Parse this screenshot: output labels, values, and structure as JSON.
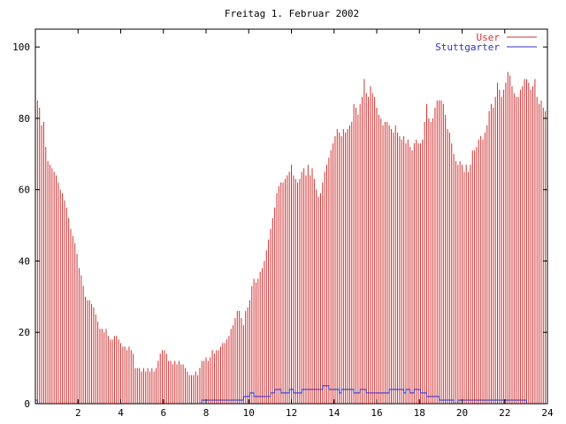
{
  "chart_data": {
    "type": "bar",
    "title": "Freitag 1. Februar 2002",
    "xlabel": "",
    "ylabel": "",
    "xlim": [
      0,
      24
    ],
    "ylim": [
      0,
      105
    ],
    "x_ticks": [
      2,
      4,
      6,
      8,
      10,
      12,
      14,
      16,
      18,
      20,
      22,
      24
    ],
    "y_ticks": [
      0,
      20,
      40,
      60,
      80,
      100
    ],
    "grid": false,
    "legend_position": "top-right",
    "series": [
      {
        "name": "User",
        "style": "impulses",
        "color": "#d03030",
        "values": [
          83,
          85,
          83,
          78,
          79,
          72,
          68,
          67,
          66,
          65,
          64,
          62,
          60,
          59,
          57,
          55,
          52,
          49,
          47,
          45,
          42,
          38,
          36,
          33,
          30,
          29,
          29,
          28,
          27,
          25,
          23,
          21,
          21,
          20,
          21,
          19,
          18,
          18,
          19,
          19,
          18,
          17,
          16,
          16,
          15,
          16,
          15,
          14,
          10,
          10,
          10,
          9,
          10,
          9,
          10,
          9,
          10,
          9,
          10,
          12,
          14,
          15,
          15,
          14,
          12,
          12,
          11,
          12,
          11,
          12,
          11,
          11,
          10,
          9,
          8,
          8,
          8,
          9,
          8,
          10,
          12,
          12,
          13,
          12,
          13,
          15,
          14,
          15,
          15,
          16,
          17,
          17,
          18,
          19,
          21,
          22,
          24,
          26,
          26,
          24,
          22,
          26,
          27,
          29,
          33,
          35,
          34,
          35,
          37,
          38,
          40,
          43,
          46,
          49,
          52,
          55,
          59,
          61,
          62,
          62,
          63,
          64,
          65,
          67,
          64,
          63,
          62,
          63,
          65,
          66,
          64,
          67,
          64,
          66,
          63,
          60,
          58,
          59,
          62,
          65,
          67,
          69,
          71,
          73,
          75,
          77,
          76,
          75,
          77,
          76,
          77,
          78,
          79,
          84,
          83,
          81,
          84,
          86,
          91,
          87,
          86,
          89,
          87,
          86,
          83,
          81,
          80,
          78,
          79,
          79,
          78,
          77,
          76,
          78,
          76,
          75,
          74,
          75,
          73,
          74,
          72,
          71,
          73,
          74,
          73,
          73,
          74,
          79,
          84,
          80,
          79,
          80,
          83,
          85,
          85,
          85,
          84,
          81,
          77,
          76,
          73,
          70,
          68,
          67,
          68,
          67,
          65,
          67,
          65,
          67,
          71,
          71,
          72,
          74,
          75,
          74,
          76,
          78,
          82,
          84,
          83,
          86,
          90,
          88,
          86,
          88,
          90,
          93,
          92,
          89,
          87,
          86,
          86,
          88,
          89,
          91,
          91,
          90,
          88,
          89,
          91,
          86,
          84,
          85,
          83,
          82,
          80
        ]
      },
      {
        "name": "Stuttgarter",
        "style": "steps",
        "color": "#3030c0",
        "values": [
          1,
          0,
          0,
          0,
          0,
          0,
          0,
          0,
          0,
          0,
          0,
          0,
          0,
          0,
          0,
          0,
          0,
          0,
          0,
          0,
          0,
          0,
          0,
          0,
          0,
          0,
          0,
          0,
          0,
          0,
          0,
          0,
          0,
          0,
          0,
          0,
          0,
          0,
          0,
          0,
          0,
          0,
          0,
          0,
          0,
          0,
          0,
          0,
          0,
          0,
          0,
          0,
          0,
          0,
          0,
          0,
          0,
          0,
          0,
          0,
          0,
          0,
          0,
          0,
          0,
          0,
          0,
          0,
          0,
          0,
          0,
          0,
          0,
          0,
          0,
          0,
          0,
          0,
          0,
          0,
          1,
          1,
          1,
          1,
          1,
          1,
          1,
          1,
          1,
          1,
          1,
          1,
          1,
          1,
          1,
          1,
          1,
          1,
          1,
          1,
          2,
          2,
          2,
          3,
          3,
          2,
          2,
          2,
          2,
          2,
          2,
          2,
          2,
          3,
          3,
          4,
          4,
          4,
          3,
          3,
          3,
          3,
          4,
          4,
          3,
          3,
          3,
          3,
          4,
          4,
          4,
          4,
          4,
          4,
          4,
          4,
          4,
          4,
          5,
          5,
          5,
          4,
          4,
          4,
          4,
          4,
          3,
          4,
          4,
          4,
          4,
          4,
          4,
          3,
          3,
          3,
          4,
          4,
          4,
          3,
          3,
          3,
          3,
          3,
          3,
          3,
          3,
          3,
          3,
          3,
          4,
          4,
          4,
          4,
          4,
          4,
          4,
          3,
          4,
          4,
          3,
          3,
          4,
          4,
          4,
          3,
          3,
          3,
          2,
          2,
          2,
          2,
          2,
          2,
          1,
          1,
          1,
          1,
          1,
          1,
          1,
          0,
          0,
          1,
          1,
          1,
          1,
          1,
          1,
          1,
          1,
          1,
          1,
          1,
          1,
          1,
          1,
          1,
          1,
          1,
          1,
          1,
          1,
          1,
          1,
          1,
          1,
          1,
          1,
          1,
          1,
          1,
          1,
          1,
          1,
          1,
          0,
          0,
          0,
          0,
          0,
          0,
          0,
          0,
          0,
          0,
          0
        ]
      }
    ]
  }
}
